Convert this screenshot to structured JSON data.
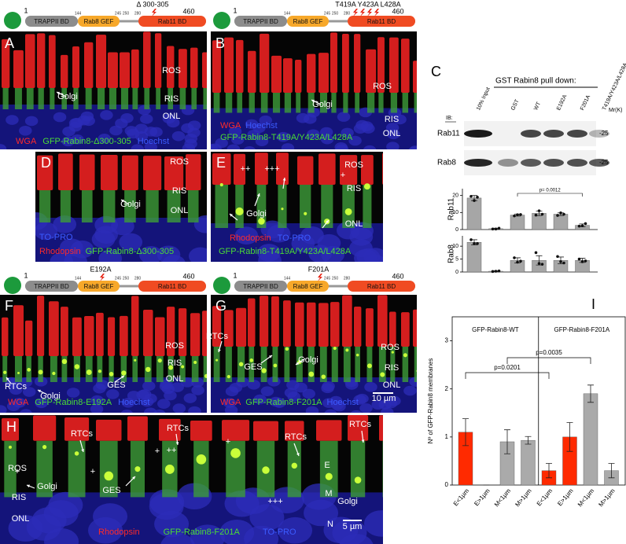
{
  "diagrams": [
    {
      "mutation": "Δ 300-305",
      "start": 1,
      "domains": [
        "TRAPPII BD",
        "Rab8 GEF",
        "Rab11 BD"
      ],
      "boundaries": [
        144,
        245,
        250,
        280
      ],
      "end": 460
    },
    {
      "mutation": "T419A Y423A L428A",
      "start": 1,
      "domains": [
        "TRAPPII BD",
        "Rab8 GEF",
        "Rab11 BD"
      ],
      "boundaries": [
        144,
        245,
        250,
        280
      ],
      "end": 460
    },
    {
      "mutation": "E192A",
      "start": 1,
      "domains": [
        "TRAPPII BD",
        "Rab8 GEF",
        "Rab11 BD"
      ],
      "boundaries": [
        144,
        245,
        250,
        280
      ],
      "end": 460
    },
    {
      "mutation": "F201A",
      "start": 1,
      "domains": [
        "TRAPPII BD",
        "Rab8 GEF",
        "Rab11 BD"
      ],
      "boundaries": [
        144,
        245,
        250,
        280
      ],
      "end": 460
    }
  ],
  "panels": [
    {
      "letter": "A",
      "labels": [
        "ROS",
        "RIS",
        "ONL",
        "Golgi"
      ],
      "legend": [
        [
          {
            "text": "WGA",
            "color": "#ff2a2a"
          },
          {
            "text": "GFP-Rabin8-Δ300-305",
            "color": "#4bdc35"
          },
          {
            "text": "Hoechst",
            "color": "#3b5bff"
          }
        ]
      ]
    },
    {
      "letter": "B",
      "labels": [
        "ROS",
        "RIS",
        "ONL",
        "Golgi"
      ],
      "legend": [
        [
          {
            "text": "WGA",
            "color": "#ff2a2a"
          },
          {
            "text": "Hoechst",
            "color": "#3b5bff"
          }
        ],
        [
          {
            "text": "GFP-Rabin8-T419A/Y423A/L428A",
            "color": "#4bdc35"
          }
        ]
      ]
    },
    {
      "letter": "D",
      "labels": [
        "ROS",
        "RIS",
        "ONL",
        "Golgi"
      ],
      "legend": [
        [
          {
            "text": "TO-PRO",
            "color": "#3b5bff"
          }
        ],
        [
          {
            "text": "Rhodopsin",
            "color": "#ff2a2a"
          },
          {
            "text": "GFP-Rabin8-Δ300-305",
            "color": "#4bdc35"
          }
        ]
      ]
    },
    {
      "letter": "E",
      "labels": [
        "ROS",
        "RIS",
        "ONL",
        "Golgi",
        "++",
        "+++",
        "+"
      ],
      "legend": [
        [
          {
            "text": "Rhodopsin",
            "color": "#ff2a2a"
          },
          {
            "text": "TO-PRO",
            "color": "#3b5bff"
          }
        ],
        [
          {
            "text": "GFP-Rabin8-T419A/Y423A/L428A",
            "color": "#4bdc35"
          }
        ]
      ]
    },
    {
      "letter": "F",
      "labels": [
        "ROS",
        "RIS",
        "ONL",
        "RTCs",
        "Golgi",
        "GES"
      ],
      "legend": [
        [
          {
            "text": "WGA",
            "color": "#ff2a2a"
          },
          {
            "text": "GFP-Rabin8-E192A",
            "color": "#4bdc35"
          },
          {
            "text": "Hoechst",
            "color": "#3b5bff"
          }
        ]
      ]
    },
    {
      "letter": "G",
      "labels": [
        "RTCs",
        "GES",
        "Golgi",
        "ROS",
        "RIS",
        "ONL",
        "10 µm"
      ],
      "legend": [
        [
          {
            "text": "WGA",
            "color": "#ff2a2a"
          },
          {
            "text": "GFP-Rabin8-F201A",
            "color": "#4bdc35"
          },
          {
            "text": "Hoechst",
            "color": "#3b5bff"
          }
        ]
      ]
    },
    {
      "letter": "H",
      "labels": [
        "ROS",
        "RIS",
        "ONL",
        "Golgi",
        "RTCs",
        "RTCs",
        "RTCs",
        "RTCs",
        "+",
        "+",
        "+",
        "+",
        "GES",
        "++",
        "+++",
        "E",
        "M",
        "N",
        "Golgi",
        "5 µm"
      ],
      "legend": [
        [
          {
            "text": "Rhodopsin",
            "color": "#ff2a2a"
          },
          {
            "text": "GFP-Rabin8-F201A",
            "color": "#4bdc35"
          },
          {
            "text": "TO-PRO",
            "color": "#3b5bff"
          }
        ]
      ]
    }
  ],
  "blot": {
    "letter": "C",
    "title": "GST Rabin8 pull down:",
    "ib_label": "IB:",
    "mr_label": "Mr(K)",
    "lanes": [
      "10% Input",
      "GST",
      "WT",
      "E192A",
      "F201A",
      "T419A/Y423A/L428A"
    ],
    "rows": [
      {
        "name": "Rab11",
        "marker": "-25"
      },
      {
        "name": "Rab8",
        "marker": "-25"
      }
    ]
  },
  "chart_data": [
    {
      "type": "bar",
      "y_label": "Rab11",
      "categories": [
        null,
        null,
        null,
        null,
        null,
        null
      ],
      "values": [
        18.5,
        0.5,
        8.5,
        9.5,
        9,
        2.5
      ],
      "errors": [
        1.5,
        0.3,
        0.6,
        1.3,
        0.8,
        0.8
      ],
      "points": [
        [
          19.5,
          17,
          19
        ],
        [
          0.3,
          0.3,
          0.8
        ],
        [
          8,
          8.7,
          8.8
        ],
        [
          8.5,
          11,
          9
        ],
        [
          8.3,
          9.8,
          9
        ],
        [
          2,
          2.2,
          3.5
        ]
      ],
      "color": "#a6a6a6",
      "ylim": [
        0,
        24
      ],
      "yticks": [
        0,
        10,
        20
      ],
      "annotation": "p= 0.0012"
    },
    {
      "type": "bar",
      "y_label": "Rab8",
      "categories": [
        null,
        null,
        null,
        null,
        null,
        null
      ],
      "values": [
        11.5,
        0.3,
        4.5,
        4.5,
        4.5,
        4.5
      ],
      "errors": [
        1,
        0.2,
        1,
        1.8,
        1.3,
        0.8
      ],
      "points": [
        [
          12.5,
          11,
          11
        ],
        [
          0.2,
          0.3,
          0.4
        ],
        [
          5.5,
          3.8,
          4.2
        ],
        [
          7.5,
          3.3,
          3
        ],
        [
          6,
          4,
          3.5
        ],
        [
          5,
          4,
          4.3
        ]
      ],
      "color": "#a6a6a6",
      "ylim": [
        0,
        14
      ],
      "yticks": [
        0,
        5,
        10
      ]
    },
    {
      "type": "bar",
      "letter": "I",
      "y_label": "Nº of GFP-Rabin8 membranes",
      "groups": [
        "GFP-Rabin8-WT",
        "GFP-Rabin8-F201A"
      ],
      "categories": [
        "E<1µm",
        "E>1µm",
        "M<1µm",
        "M>1µm",
        "E<1µm",
        "E>1µm",
        "M<1µm",
        "M>1µm"
      ],
      "values": [
        1.1,
        0,
        0.9,
        0.93,
        0.3,
        1.0,
        1.9,
        0.3
      ],
      "errors": [
        0.28,
        0,
        0.25,
        0.08,
        0.15,
        0.3,
        0.18,
        0.15
      ],
      "colors": [
        "#ff2a00",
        "#ff2a00",
        "#aaaaaa",
        "#aaaaaa",
        "#ff2a00",
        "#ff2a00",
        "#aaaaaa",
        "#aaaaaa"
      ],
      "ylim": [
        0,
        3.5
      ],
      "yticks": [
        0,
        1,
        2,
        3
      ],
      "annotations": [
        "p=0.0035",
        "p=0.0201"
      ],
      "frame": true
    }
  ]
}
